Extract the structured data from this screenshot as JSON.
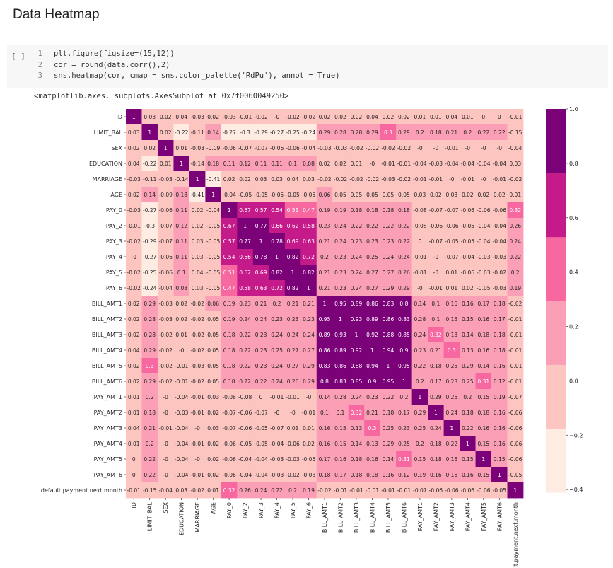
{
  "page_title": "Data Heatmap",
  "cell": {
    "run_label": "[ ]",
    "lines": [
      {
        "n": "1",
        "code": "plt.figure(figsize=(15,12))"
      },
      {
        "n": "2",
        "code": "cor = round(data.corr(),2)"
      },
      {
        "n": "3",
        "code": "sns.heatmap(cor, cmap = sns.color_palette('RdPu'), annot = True)"
      }
    ],
    "output": "<matplotlib.axes._subplots.AxesSubplot at 0x7f0060049250>"
  },
  "chart_data": {
    "type": "heatmap",
    "title": "",
    "xlabel": "",
    "ylabel": "",
    "labels": [
      "ID",
      "LIMIT_BAL",
      "SEX",
      "EDUCATION",
      "MARRIAGE",
      "AGE",
      "PAY_0",
      "PAY_2",
      "PAY_3",
      "PAY_4",
      "PAY_5",
      "PAY_6",
      "BILL_AMT1",
      "BILL_AMT2",
      "BILL_AMT3",
      "BILL_AMT4",
      "BILL_AMT5",
      "BILL_AMT6",
      "PAY_AMT1",
      "PAY_AMT2",
      "PAY_AMT3",
      "PAY_AMT4",
      "PAY_AMT5",
      "PAY_AMT6",
      "default.payment.next.month"
    ],
    "matrix": [
      [
        1,
        0.03,
        0.02,
        0.04,
        -0.03,
        0.02,
        -0.03,
        -0.01,
        -0.02,
        0,
        -0.02,
        -0.02,
        0.02,
        0.02,
        0.02,
        0.04,
        0.02,
        0.02,
        0.01,
        0.01,
        0.04,
        0.01,
        0,
        0,
        -0.01
      ],
      [
        0.03,
        1,
        0.02,
        -0.22,
        -0.11,
        0.14,
        -0.27,
        -0.3,
        -0.29,
        -0.27,
        -0.25,
        -0.24,
        0.29,
        0.28,
        0.28,
        0.29,
        0.3,
        0.29,
        0.2,
        0.18,
        0.21,
        0.2,
        0.22,
        0.22,
        -0.15
      ],
      [
        0.02,
        0.02,
        1,
        0.01,
        -0.03,
        -0.09,
        -0.06,
        -0.07,
        -0.07,
        -0.06,
        -0.06,
        -0.04,
        -0.03,
        -0.03,
        -0.02,
        -0.02,
        -0.02,
        -0.02,
        0,
        0,
        -0.01,
        0,
        0,
        0,
        -0.04
      ],
      [
        0.04,
        -0.22,
        0.01,
        1,
        -0.14,
        0.18,
        0.11,
        0.12,
        0.11,
        0.11,
        0.1,
        0.08,
        0.02,
        0.02,
        0.01,
        0,
        -0.01,
        -0.01,
        -0.04,
        -0.03,
        -0.04,
        -0.04,
        -0.04,
        -0.04,
        0.03
      ],
      [
        -0.03,
        -0.11,
        -0.03,
        -0.14,
        1,
        -0.41,
        0.02,
        0.02,
        0.03,
        0.03,
        0.04,
        0.03,
        -0.02,
        -0.02,
        -0.02,
        -0.02,
        -0.03,
        -0.02,
        -0.01,
        -0.01,
        0,
        -0.01,
        0,
        -0.01,
        -0.02
      ],
      [
        0.02,
        0.14,
        -0.09,
        0.18,
        -0.41,
        1,
        -0.04,
        -0.05,
        -0.05,
        -0.05,
        -0.05,
        -0.05,
        0.06,
        0.05,
        0.05,
        0.05,
        0.05,
        0.05,
        0.03,
        0.02,
        0.03,
        0.02,
        0.02,
        0.02,
        0.01
      ],
      [
        -0.03,
        -0.27,
        -0.06,
        0.11,
        0.02,
        -0.04,
        1,
        0.67,
        0.57,
        0.54,
        0.51,
        0.47,
        0.19,
        0.19,
        0.18,
        0.18,
        0.18,
        0.18,
        -0.08,
        -0.07,
        -0.07,
        -0.06,
        -0.06,
        -0.06,
        0.32
      ],
      [
        -0.01,
        -0.3,
        -0.07,
        0.12,
        0.02,
        -0.05,
        0.67,
        1,
        0.77,
        0.66,
        0.62,
        0.58,
        0.23,
        0.24,
        0.22,
        0.22,
        0.22,
        0.22,
        -0.08,
        -0.06,
        -0.06,
        -0.05,
        -0.04,
        -0.04,
        0.26
      ],
      [
        -0.02,
        -0.29,
        -0.07,
        0.11,
        0.03,
        -0.05,
        0.57,
        0.77,
        1,
        0.78,
        0.69,
        0.63,
        0.21,
        0.24,
        0.23,
        0.23,
        0.23,
        0.22,
        0,
        -0.07,
        -0.05,
        -0.05,
        -0.04,
        -0.04,
        0.24
      ],
      [
        0,
        -0.27,
        -0.06,
        0.11,
        0.03,
        -0.05,
        0.54,
        0.66,
        0.78,
        1,
        0.82,
        0.72,
        0.2,
        0.23,
        0.24,
        0.25,
        0.24,
        0.24,
        -0.01,
        0,
        -0.07,
        -0.04,
        -0.03,
        -0.03,
        0.22
      ],
      [
        -0.02,
        -0.25,
        -0.06,
        0.1,
        0.04,
        -0.05,
        0.51,
        0.62,
        0.69,
        0.82,
        1,
        0.82,
        0.21,
        0.23,
        0.24,
        0.27,
        0.27,
        0.26,
        -0.01,
        0,
        0.01,
        -0.06,
        -0.03,
        -0.02,
        0.2
      ],
      [
        -0.02,
        -0.24,
        -0.04,
        0.08,
        0.03,
        -0.05,
        0.47,
        0.58,
        0.63,
        0.72,
        0.82,
        1,
        0.21,
        0.23,
        0.24,
        0.27,
        0.29,
        0.29,
        0,
        -0.01,
        0.01,
        0.02,
        -0.05,
        -0.03,
        0.19
      ],
      [
        0.02,
        0.29,
        -0.03,
        0.02,
        -0.02,
        0.06,
        0.19,
        0.23,
        0.21,
        0.2,
        0.21,
        0.21,
        1,
        0.95,
        0.89,
        0.86,
        0.83,
        0.8,
        0.14,
        0.1,
        0.16,
        0.16,
        0.17,
        0.18,
        -0.02
      ],
      [
        0.02,
        0.28,
        -0.03,
        0.02,
        -0.02,
        0.05,
        0.19,
        0.24,
        0.24,
        0.23,
        0.23,
        0.23,
        0.95,
        1,
        0.93,
        0.89,
        0.86,
        0.83,
        0.28,
        0.1,
        0.15,
        0.15,
        0.16,
        0.17,
        -0.01
      ],
      [
        0.02,
        0.28,
        -0.02,
        0.01,
        -0.02,
        0.05,
        0.18,
        0.22,
        0.23,
        0.24,
        0.24,
        0.24,
        0.89,
        0.93,
        1,
        0.92,
        0.88,
        0.85,
        0.24,
        0.32,
        0.13,
        0.14,
        0.18,
        0.18,
        -0.01
      ],
      [
        0.04,
        0.29,
        -0.02,
        0,
        -0.02,
        0.05,
        0.18,
        0.22,
        0.23,
        0.25,
        0.27,
        0.27,
        0.86,
        0.89,
        0.92,
        1,
        0.94,
        0.9,
        0.23,
        0.21,
        0.3,
        0.13,
        0.16,
        0.18,
        -0.01
      ],
      [
        0.02,
        0.3,
        -0.02,
        -0.01,
        -0.03,
        0.05,
        0.18,
        0.22,
        0.23,
        0.24,
        0.27,
        0.29,
        0.83,
        0.86,
        0.88,
        0.94,
        1,
        0.95,
        0.22,
        0.18,
        0.25,
        0.29,
        0.14,
        0.16,
        -0.01
      ],
      [
        0.02,
        0.29,
        -0.02,
        -0.01,
        -0.02,
        0.05,
        0.18,
        0.22,
        0.22,
        0.24,
        0.26,
        0.29,
        0.8,
        0.83,
        0.85,
        0.9,
        0.95,
        1,
        0.2,
        0.17,
        0.23,
        0.25,
        0.31,
        0.12,
        -0.01
      ],
      [
        0.01,
        0.2,
        0,
        -0.04,
        -0.01,
        0.03,
        -0.08,
        -0.08,
        0,
        -0.01,
        -0.01,
        0,
        0.14,
        0.28,
        0.24,
        0.23,
        0.22,
        0.2,
        1,
        0.29,
        0.25,
        0.2,
        0.15,
        0.19,
        -0.07
      ],
      [
        0.01,
        0.18,
        0,
        -0.03,
        -0.01,
        0.02,
        -0.07,
        -0.06,
        -0.07,
        0,
        0,
        -0.01,
        0.1,
        0.1,
        0.32,
        0.21,
        0.18,
        0.17,
        0.29,
        1,
        0.24,
        0.18,
        0.18,
        0.16,
        -0.06
      ],
      [
        0.04,
        0.21,
        -0.01,
        -0.04,
        0,
        0.03,
        -0.07,
        -0.06,
        -0.05,
        -0.07,
        0.01,
        0.01,
        0.16,
        0.15,
        0.13,
        0.3,
        0.25,
        0.23,
        0.25,
        0.24,
        1,
        0.22,
        0.16,
        0.16,
        -0.06
      ],
      [
        0.01,
        0.2,
        0,
        -0.04,
        -0.01,
        0.02,
        -0.06,
        -0.05,
        -0.05,
        -0.04,
        -0.06,
        0.02,
        0.16,
        0.15,
        0.14,
        0.13,
        0.29,
        0.25,
        0.2,
        0.18,
        0.22,
        1,
        0.15,
        0.16,
        -0.06
      ],
      [
        0,
        0.22,
        0,
        -0.04,
        0,
        0.02,
        -0.06,
        -0.04,
        -0.04,
        -0.03,
        -0.03,
        -0.05,
        0.17,
        0.16,
        0.18,
        0.16,
        0.14,
        0.31,
        0.15,
        0.18,
        0.16,
        0.15,
        1,
        0.15,
        -0.06
      ],
      [
        0,
        0.22,
        0,
        -0.04,
        -0.01,
        0.02,
        -0.06,
        -0.04,
        -0.04,
        -0.03,
        -0.02,
        -0.03,
        0.18,
        0.17,
        0.18,
        0.18,
        0.16,
        0.12,
        0.19,
        0.16,
        0.16,
        0.16,
        0.15,
        1,
        -0.05
      ],
      [
        -0.01,
        -0.15,
        -0.04,
        0.03,
        -0.02,
        0.01,
        0.32,
        0.26,
        0.24,
        0.22,
        0.2,
        0.19,
        -0.02,
        -0.01,
        -0.01,
        -0.01,
        -0.01,
        -0.01,
        -0.07,
        -0.06,
        -0.06,
        -0.06,
        -0.06,
        -0.05,
        1
      ]
    ],
    "colorbar": {
      "ticks": [
        "1.0",
        "0.8",
        "0.6",
        "0.4",
        "0.2",
        "0.0",
        "−0.2",
        "−0.4"
      ],
      "range": [
        -0.41,
        1.0
      ]
    },
    "colors": [
      "#feebe2",
      "#fcc5c0",
      "#fa9fb5",
      "#f768a1",
      "#c51b8a",
      "#7a0177"
    ]
  }
}
